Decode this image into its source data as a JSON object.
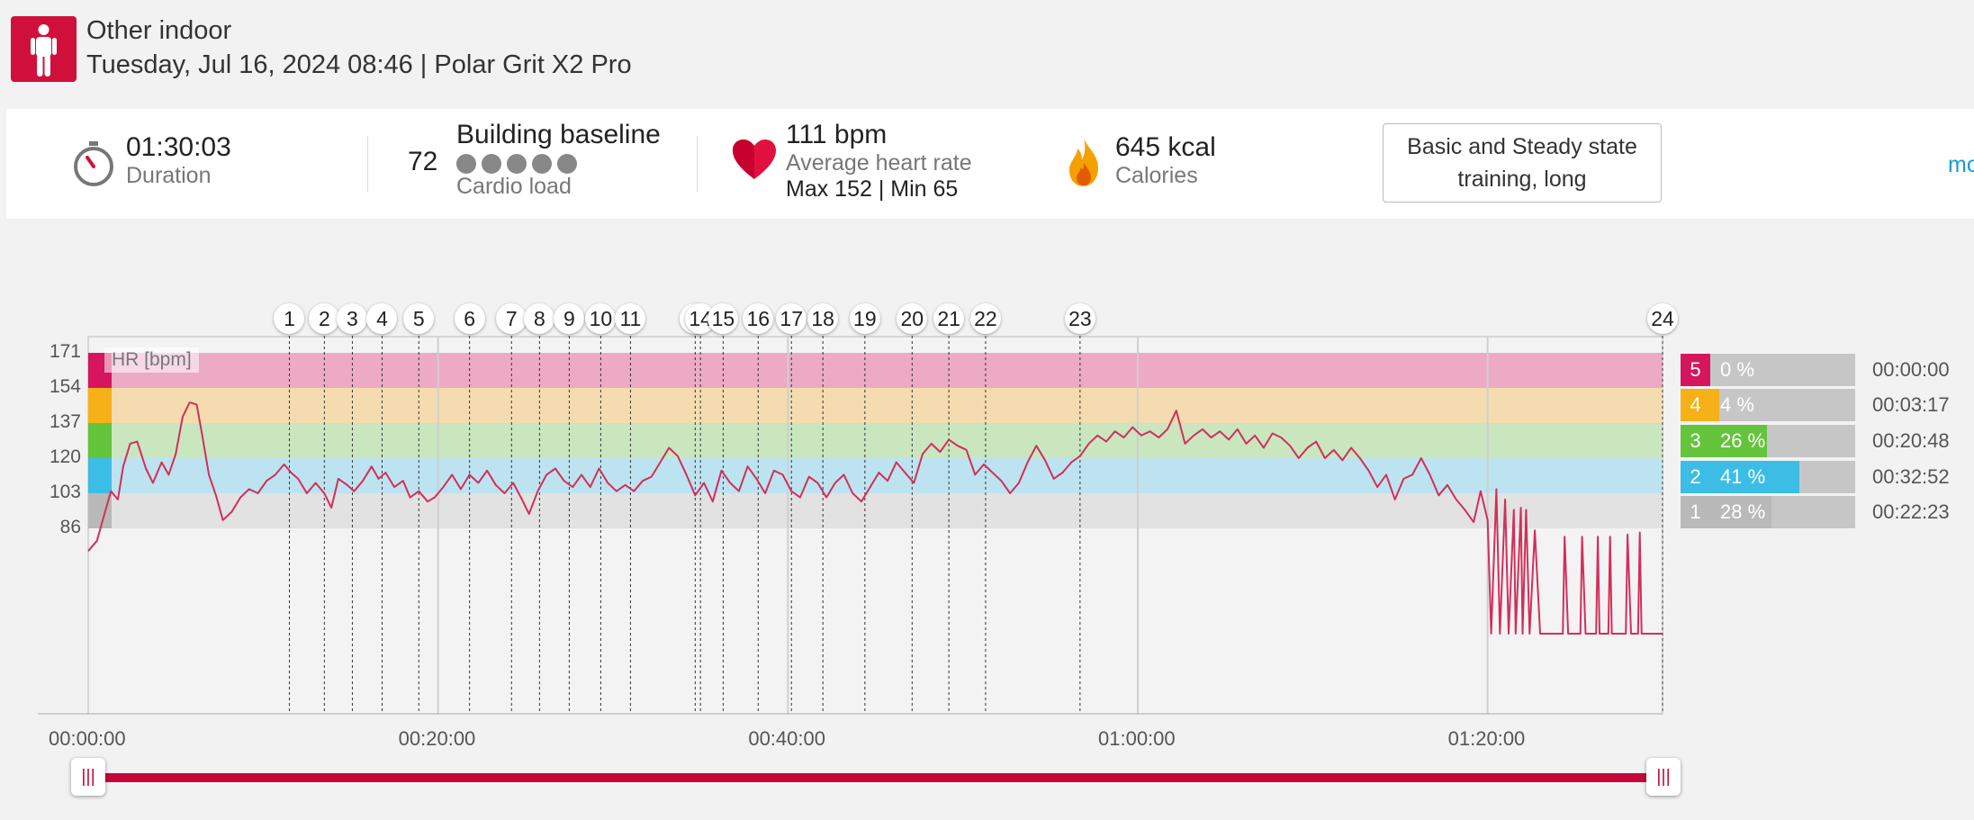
{
  "header": {
    "sport_icon": "person-standing-icon",
    "title": "Other indoor",
    "subtitle": "Tuesday, Jul 16, 2024 08:46 | Polar Grit X2 Pro"
  },
  "summary": {
    "duration": {
      "icon": "stopwatch-icon",
      "value": "01:30:03",
      "label": "Duration"
    },
    "cardio_load": {
      "value": "72",
      "status": "Building baseline",
      "label": "Cardio load",
      "dots": 5
    },
    "heart_rate": {
      "icon": "heart-icon",
      "value": "111 bpm",
      "label": "Average heart rate",
      "max_min": "Max 152  |  Min 65"
    },
    "calories": {
      "icon": "flame-icon",
      "value": "645 kcal",
      "label": "Calories"
    },
    "benefit": "Basic and Steady state training, long",
    "more_link": "mo"
  },
  "colors": {
    "accent": "#c4093a",
    "zone5": "#d6155f",
    "zone4": "#f5b117",
    "zone3": "#64c43b",
    "zone2": "#3cbde6",
    "zone1": "#b9b9b9",
    "hr_line": "#d0305a"
  },
  "zones": [
    {
      "num": "5",
      "pct": "0 %",
      "pct_value": 0,
      "time": "00:00:00"
    },
    {
      "num": "4",
      "pct": "4 %",
      "pct_value": 4,
      "time": "00:03:17"
    },
    {
      "num": "3",
      "pct": "26 %",
      "pct_value": 26,
      "time": "00:20:48"
    },
    {
      "num": "2",
      "pct": "41 %",
      "pct_value": 41,
      "time": "00:32:52"
    },
    {
      "num": "1",
      "pct": "28 %",
      "pct_value": 28,
      "time": "00:22:23"
    }
  ],
  "chart_data": {
    "type": "line",
    "title": "",
    "ylabel": "HR [bpm]",
    "xlabel": "",
    "y_ticks": [
      "171",
      "154",
      "137",
      "120",
      "103",
      "86"
    ],
    "x_ticks": [
      "00:00:00",
      "00:20:00",
      "00:40:00",
      "01:00:00",
      "01:20:00"
    ],
    "x_range_min": [
      0,
      90
    ],
    "hr_zones_bpm": [
      [
        86,
        103
      ],
      [
        103,
        120
      ],
      [
        120,
        137
      ],
      [
        137,
        154
      ],
      [
        154,
        171
      ]
    ],
    "laps": [
      {
        "label": "1",
        "t": 11.5
      },
      {
        "label": "2",
        "t": 13.5
      },
      {
        "label": "3",
        "t": 15.1
      },
      {
        "label": "4",
        "t": 16.8
      },
      {
        "label": "5",
        "t": 18.9
      },
      {
        "label": "6",
        "t": 21.8
      },
      {
        "label": "7",
        "t": 24.2
      },
      {
        "label": "8",
        "t": 25.8
      },
      {
        "label": "9",
        "t": 27.5
      },
      {
        "label": "10",
        "t": 29.3
      },
      {
        "label": "11",
        "t": 31.0
      },
      {
        "label": "",
        "t": 34.7
      },
      {
        "label": "14",
        "t": 35.0
      },
      {
        "label": "15",
        "t": 36.3
      },
      {
        "label": "16",
        "t": 38.3
      },
      {
        "label": "17",
        "t": 40.2
      },
      {
        "label": "18",
        "t": 42.0
      },
      {
        "label": "19",
        "t": 44.4
      },
      {
        "label": "20",
        "t": 47.1
      },
      {
        "label": "21",
        "t": 49.2
      },
      {
        "label": "22",
        "t": 51.3
      },
      {
        "label": "23",
        "t": 56.7
      },
      {
        "label": "24",
        "t": 90.0
      }
    ],
    "series": [
      {
        "points": [
          [
            0,
            75
          ],
          [
            0.5,
            80
          ],
          [
            1,
            95
          ],
          [
            1.3,
            104
          ],
          [
            1.7,
            100
          ],
          [
            2,
            116
          ],
          [
            2.4,
            127
          ],
          [
            2.8,
            128
          ],
          [
            3.3,
            115
          ],
          [
            3.7,
            108
          ],
          [
            4.2,
            118
          ],
          [
            4.6,
            112
          ],
          [
            5.0,
            122
          ],
          [
            5.4,
            140
          ],
          [
            5.8,
            147
          ],
          [
            6.2,
            146
          ],
          [
            6.5,
            132
          ],
          [
            6.9,
            112
          ],
          [
            7.3,
            102
          ],
          [
            7.7,
            90
          ],
          [
            8.2,
            94
          ],
          [
            8.7,
            101
          ],
          [
            9.2,
            105
          ],
          [
            9.7,
            103
          ],
          [
            10.2,
            109
          ],
          [
            10.7,
            112
          ],
          [
            11.2,
            117
          ],
          [
            11.6,
            113
          ],
          [
            12,
            110
          ],
          [
            12.5,
            103
          ],
          [
            13,
            108
          ],
          [
            13.5,
            103
          ],
          [
            13.9,
            96
          ],
          [
            14.3,
            110
          ],
          [
            14.8,
            107
          ],
          [
            15.2,
            104
          ],
          [
            15.7,
            109
          ],
          [
            16.2,
            116
          ],
          [
            16.6,
            110
          ],
          [
            17,
            113
          ],
          [
            17.5,
            106
          ],
          [
            18,
            109
          ],
          [
            18.4,
            101
          ],
          [
            18.9,
            104
          ],
          [
            19.4,
            99
          ],
          [
            19.8,
            101
          ],
          [
            20.3,
            106
          ],
          [
            20.8,
            112
          ],
          [
            21.3,
            105
          ],
          [
            21.8,
            112
          ],
          [
            22.3,
            108
          ],
          [
            22.8,
            114
          ],
          [
            23.3,
            107
          ],
          [
            23.8,
            103
          ],
          [
            24.3,
            108
          ],
          [
            24.8,
            100
          ],
          [
            25.2,
            93
          ],
          [
            25.7,
            104
          ],
          [
            26.2,
            112
          ],
          [
            26.7,
            115
          ],
          [
            27.2,
            109
          ],
          [
            27.7,
            106
          ],
          [
            28.2,
            112
          ],
          [
            28.7,
            106
          ],
          [
            29.2,
            115
          ],
          [
            29.7,
            108
          ],
          [
            30.2,
            104
          ],
          [
            30.7,
            107
          ],
          [
            31.2,
            104
          ],
          [
            31.7,
            109
          ],
          [
            32.2,
            111
          ],
          [
            32.7,
            118
          ],
          [
            33.2,
            125
          ],
          [
            33.7,
            121
          ],
          [
            34.2,
            112
          ],
          [
            34.7,
            102
          ],
          [
            35.2,
            108
          ],
          [
            35.7,
            99
          ],
          [
            36.2,
            114
          ],
          [
            36.7,
            108
          ],
          [
            37.2,
            104
          ],
          [
            37.7,
            116
          ],
          [
            38.2,
            110
          ],
          [
            38.7,
            103
          ],
          [
            39.2,
            114
          ],
          [
            39.7,
            112
          ],
          [
            40.2,
            104
          ],
          [
            40.7,
            101
          ],
          [
            41.2,
            111
          ],
          [
            41.7,
            108
          ],
          [
            42.2,
            101
          ],
          [
            42.7,
            108
          ],
          [
            43.2,
            112
          ],
          [
            43.7,
            103
          ],
          [
            44.2,
            99
          ],
          [
            44.7,
            106
          ],
          [
            45.2,
            113
          ],
          [
            45.7,
            109
          ],
          [
            46.2,
            118
          ],
          [
            46.7,
            113
          ],
          [
            47.2,
            108
          ],
          [
            47.7,
            122
          ],
          [
            48.2,
            127
          ],
          [
            48.7,
            123
          ],
          [
            49.2,
            129
          ],
          [
            49.7,
            126
          ],
          [
            50.2,
            124
          ],
          [
            50.7,
            112
          ],
          [
            51.2,
            117
          ],
          [
            51.7,
            113
          ],
          [
            52.2,
            109
          ],
          [
            52.7,
            103
          ],
          [
            53.2,
            108
          ],
          [
            53.7,
            118
          ],
          [
            54.2,
            126
          ],
          [
            54.7,
            119
          ],
          [
            55.2,
            110
          ],
          [
            55.7,
            113
          ],
          [
            56.2,
            118
          ],
          [
            56.7,
            121
          ],
          [
            57.2,
            127
          ],
          [
            57.7,
            131
          ],
          [
            58.2,
            128
          ],
          [
            58.7,
            133
          ],
          [
            59.2,
            130
          ],
          [
            59.7,
            135
          ],
          [
            60.2,
            131
          ],
          [
            60.7,
            133
          ],
          [
            61.2,
            130
          ],
          [
            61.7,
            134
          ],
          [
            62.2,
            143
          ],
          [
            62.7,
            127
          ],
          [
            63.2,
            131
          ],
          [
            63.7,
            134
          ],
          [
            64.2,
            130
          ],
          [
            64.7,
            133
          ],
          [
            65.2,
            129
          ],
          [
            65.7,
            134
          ],
          [
            66.2,
            127
          ],
          [
            66.7,
            131
          ],
          [
            67.2,
            125
          ],
          [
            67.7,
            132
          ],
          [
            68.2,
            130
          ],
          [
            68.7,
            126
          ],
          [
            69.2,
            120
          ],
          [
            69.7,
            125
          ],
          [
            70.2,
            128
          ],
          [
            70.7,
            120
          ],
          [
            71.2,
            124
          ],
          [
            71.7,
            119
          ],
          [
            72.2,
            125
          ],
          [
            72.7,
            120
          ],
          [
            73.2,
            114
          ],
          [
            73.7,
            106
          ],
          [
            74.2,
            112
          ],
          [
            74.7,
            100
          ],
          [
            75.2,
            110
          ],
          [
            75.7,
            112
          ],
          [
            76.2,
            120
          ],
          [
            76.7,
            112
          ],
          [
            77.2,
            102
          ],
          [
            77.7,
            107
          ],
          [
            78.2,
            100
          ],
          [
            78.7,
            95
          ],
          [
            79.2,
            89
          ],
          [
            79.6,
            104
          ],
          [
            80.0,
            90
          ],
          [
            80.2,
            35
          ],
          [
            80.5,
            105
          ],
          [
            80.7,
            35
          ],
          [
            81.0,
            100
          ],
          [
            81.2,
            35
          ],
          [
            81.5,
            95
          ],
          [
            81.6,
            35
          ],
          [
            81.9,
            96
          ],
          [
            82.0,
            35
          ],
          [
            82.2,
            95
          ],
          [
            82.4,
            35
          ],
          [
            82.7,
            85
          ],
          [
            83,
            35
          ],
          [
            84,
            35
          ],
          [
            84.3,
            35
          ],
          [
            84.4,
            82
          ],
          [
            84.6,
            35
          ],
          [
            85.3,
            35
          ],
          [
            85.4,
            82
          ],
          [
            85.6,
            35
          ],
          [
            86.2,
            35
          ],
          [
            86.3,
            82
          ],
          [
            86.4,
            35
          ],
          [
            86.9,
            35
          ],
          [
            87.0,
            82
          ],
          [
            87.1,
            35
          ],
          [
            87.9,
            35
          ],
          [
            88.0,
            83
          ],
          [
            88.2,
            35
          ],
          [
            88.6,
            35
          ],
          [
            88.7,
            84
          ],
          [
            88.8,
            35
          ],
          [
            90,
            35
          ]
        ]
      }
    ]
  }
}
